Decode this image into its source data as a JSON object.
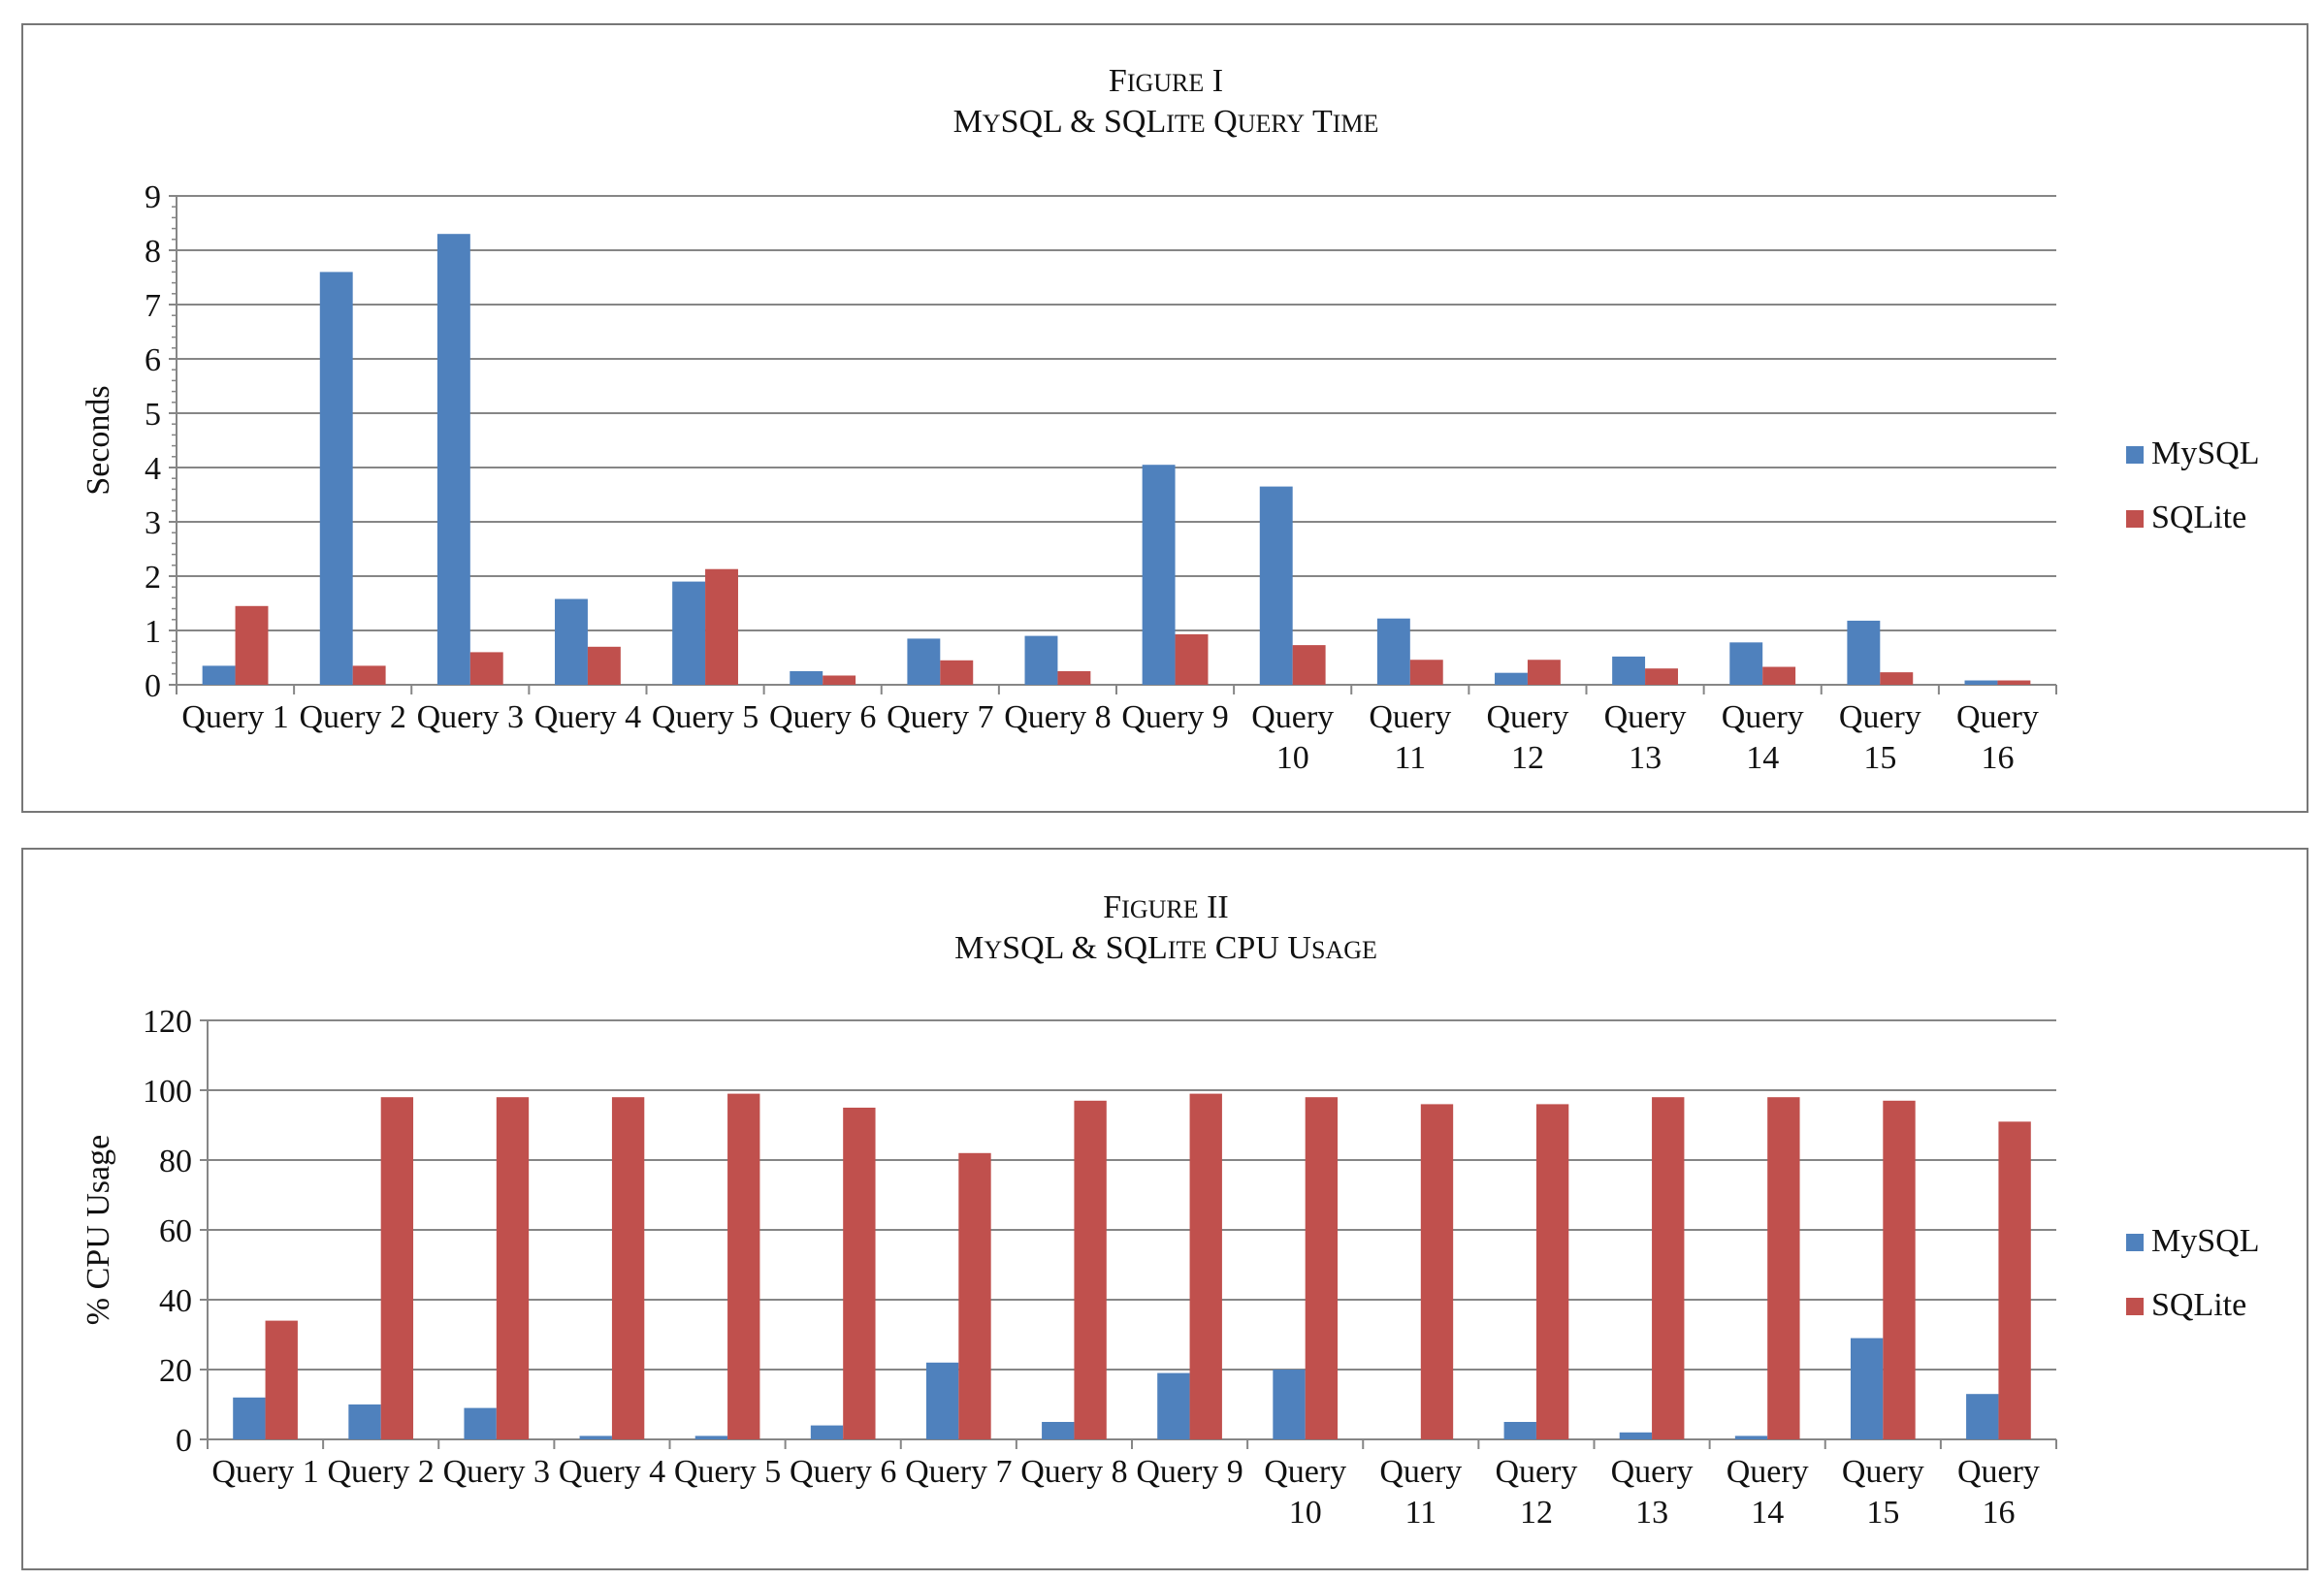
{
  "chart_data": [
    {
      "type": "bar",
      "title_line1": "Figure I",
      "title_line2": "MySQL & SQLite Query Time",
      "xlabel": "",
      "ylabel": "Seconds",
      "ylim": [
        0,
        9
      ],
      "yticks": [
        "0",
        "1",
        "2",
        "3",
        "4",
        "5",
        "6",
        "7",
        "8",
        "9"
      ],
      "grid": true,
      "legend_position": "right",
      "categories": [
        [
          "Query 1"
        ],
        [
          "Query 2"
        ],
        [
          "Query 3"
        ],
        [
          "Query 4"
        ],
        [
          "Query 5"
        ],
        [
          "Query 6"
        ],
        [
          "Query 7"
        ],
        [
          "Query 8"
        ],
        [
          "Query 9"
        ],
        [
          "Query",
          "10"
        ],
        [
          "Query",
          "11"
        ],
        [
          "Query",
          "12"
        ],
        [
          "Query",
          "13"
        ],
        [
          "Query",
          "14"
        ],
        [
          "Query",
          "15"
        ],
        [
          "Query",
          "16"
        ]
      ],
      "series": [
        {
          "name": "MySQL",
          "color": "#4F81BD",
          "values": [
            0.35,
            7.6,
            8.3,
            1.58,
            1.9,
            0.25,
            0.85,
            0.9,
            4.05,
            3.65,
            1.22,
            0.22,
            0.52,
            0.78,
            1.18,
            0.08
          ]
        },
        {
          "name": "SQLite",
          "color": "#C0504D",
          "values": [
            1.45,
            0.35,
            0.6,
            0.7,
            2.13,
            0.17,
            0.45,
            0.25,
            0.93,
            0.73,
            0.46,
            0.46,
            0.3,
            0.33,
            0.23,
            0.08
          ]
        }
      ]
    },
    {
      "type": "bar",
      "title_line1": "Figure II",
      "title_line2": "MySQL & SQLite CPU Usage",
      "xlabel": "",
      "ylabel": "% CPU Usage",
      "ylim": [
        0,
        120
      ],
      "yticks": [
        "0",
        "20",
        "40",
        "60",
        "80",
        "100",
        "120"
      ],
      "grid": true,
      "legend_position": "right",
      "categories": [
        [
          "Query 1"
        ],
        [
          "Query 2"
        ],
        [
          "Query 3"
        ],
        [
          "Query 4"
        ],
        [
          "Query 5"
        ],
        [
          "Query 6"
        ],
        [
          "Query 7"
        ],
        [
          "Query 8"
        ],
        [
          "Query 9"
        ],
        [
          "Query",
          "10"
        ],
        [
          "Query",
          "11"
        ],
        [
          "Query",
          "12"
        ],
        [
          "Query",
          "13"
        ],
        [
          "Query",
          "14"
        ],
        [
          "Query",
          "15"
        ],
        [
          "Query",
          "16"
        ]
      ],
      "series": [
        {
          "name": "MySQL",
          "color": "#4F81BD",
          "values": [
            12,
            10,
            9,
            1,
            1,
            4,
            22,
            5,
            19,
            20,
            0,
            5,
            2,
            1,
            29,
            13
          ]
        },
        {
          "name": "SQLite",
          "color": "#C0504D",
          "values": [
            34,
            98,
            98,
            98,
            99,
            95,
            82,
            97,
            99,
            98,
            96,
            96,
            98,
            98,
            97,
            91
          ]
        }
      ]
    }
  ]
}
